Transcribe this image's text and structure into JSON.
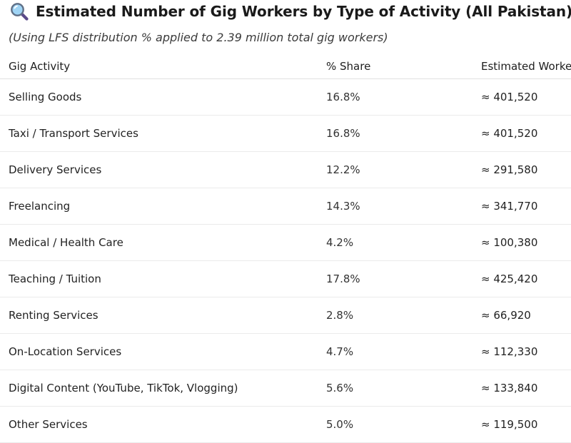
{
  "heading": {
    "icon": "magnifying-glass-icon",
    "title": "Estimated Number of Gig Workers by Type of Activity (All Pakistan)"
  },
  "subtitle": "(Using LFS distribution % applied to 2.39 million total gig workers)",
  "table": {
    "headers": [
      "Gig Activity",
      "% Share",
      "Estimated Workers"
    ],
    "rows": [
      {
        "activity": "Selling Goods",
        "share": "16.8%",
        "workers": "≈ 401,520"
      },
      {
        "activity": "Taxi / Transport Services",
        "share": "16.8%",
        "workers": "≈ 401,520"
      },
      {
        "activity": "Delivery Services",
        "share": "12.2%",
        "workers": "≈ 291,580"
      },
      {
        "activity": "Freelancing",
        "share": "14.3%",
        "workers": "≈ 341,770"
      },
      {
        "activity": "Medical / Health Care",
        "share": "4.2%",
        "workers": "≈ 100,380"
      },
      {
        "activity": "Teaching / Tuition",
        "share": "17.8%",
        "workers": "≈ 425,420"
      },
      {
        "activity": "Renting Services",
        "share": "2.8%",
        "workers": "≈ 66,920"
      },
      {
        "activity": "On-Location Services",
        "share": "4.7%",
        "workers": "≈ 112,330"
      },
      {
        "activity": "Digital Content (YouTube, TikTok, Vlogging)",
        "share": "5.6%",
        "workers": "≈ 133,840"
      },
      {
        "activity": "Other Services",
        "share": "5.0%",
        "workers": "≈ 119,500"
      }
    ]
  }
}
